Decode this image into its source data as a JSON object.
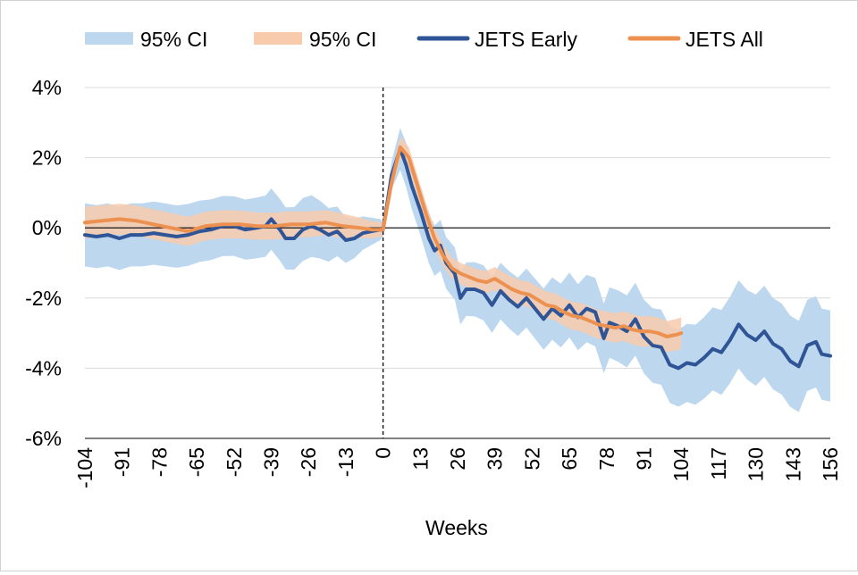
{
  "chart_data": {
    "type": "line",
    "title": "",
    "xlabel": "Weeks",
    "ylabel": "",
    "xlim": [
      -104,
      156
    ],
    "ylim": [
      -6,
      4
    ],
    "x_ticks": [
      -104,
      -91,
      -78,
      -65,
      -52,
      -39,
      -26,
      -13,
      0,
      13,
      26,
      39,
      52,
      65,
      78,
      91,
      104,
      117,
      130,
      143,
      156
    ],
    "y_ticks": [
      4,
      2,
      0,
      -2,
      -4,
      -6
    ],
    "y_tick_suffix": "%",
    "grid": "horizontal",
    "zero_line": true,
    "event_line_x": 0,
    "legend_position": "top",
    "legend": [
      {
        "label": "95% CI",
        "kind": "band",
        "color": "#bdd7ee"
      },
      {
        "label": "95% CI",
        "kind": "band",
        "color": "#f8cbad"
      },
      {
        "label": "JETS Early",
        "kind": "line",
        "color": "#2f5597"
      },
      {
        "label": "JETS All",
        "kind": "line",
        "color": "#ed9150"
      }
    ],
    "series": [
      {
        "name": "JETS Early",
        "color": "#2f5597",
        "ci_color": "#bdd7ee",
        "points": [
          [
            -104,
            -0.2
          ],
          [
            -100,
            -0.25
          ],
          [
            -96,
            -0.2
          ],
          [
            -92,
            -0.3
          ],
          [
            -88,
            -0.2
          ],
          [
            -84,
            -0.2
          ],
          [
            -80,
            -0.15
          ],
          [
            -76,
            -0.2
          ],
          [
            -72,
            -0.25
          ],
          [
            -68,
            -0.2
          ],
          [
            -64,
            -0.1
          ],
          [
            -60,
            -0.05
          ],
          [
            -56,
            0.05
          ],
          [
            -52,
            0.05
          ],
          [
            -48,
            -0.05
          ],
          [
            -44,
            0.0
          ],
          [
            -41,
            0.05
          ],
          [
            -39,
            0.25
          ],
          [
            -36,
            -0.05
          ],
          [
            -34,
            -0.3
          ],
          [
            -31,
            -0.3
          ],
          [
            -28,
            -0.05
          ],
          [
            -25,
            0.05
          ],
          [
            -22,
            -0.05
          ],
          [
            -19,
            -0.2
          ],
          [
            -16,
            -0.1
          ],
          [
            -13,
            -0.35
          ],
          [
            -10,
            -0.3
          ],
          [
            -7,
            -0.15
          ],
          [
            -4,
            -0.1
          ],
          [
            -1,
            -0.05
          ],
          [
            0,
            -0.05
          ],
          [
            3,
            1.5
          ],
          [
            6,
            2.25
          ],
          [
            8,
            1.8
          ],
          [
            10,
            1.2
          ],
          [
            13,
            0.5
          ],
          [
            16,
            -0.3
          ],
          [
            18,
            -0.65
          ],
          [
            20,
            -0.5
          ],
          [
            22,
            -1.0
          ],
          [
            25,
            -1.3
          ],
          [
            27,
            -2.0
          ],
          [
            29,
            -1.75
          ],
          [
            32,
            -1.75
          ],
          [
            35,
            -1.85
          ],
          [
            38,
            -2.2
          ],
          [
            41,
            -1.8
          ],
          [
            44,
            -2.05
          ],
          [
            47,
            -2.25
          ],
          [
            50,
            -2.0
          ],
          [
            53,
            -2.3
          ],
          [
            56,
            -2.6
          ],
          [
            59,
            -2.3
          ],
          [
            62,
            -2.5
          ],
          [
            65,
            -2.2
          ],
          [
            68,
            -2.55
          ],
          [
            71,
            -2.3
          ],
          [
            74,
            -2.4
          ],
          [
            77,
            -3.15
          ],
          [
            79,
            -2.7
          ],
          [
            82,
            -2.8
          ],
          [
            85,
            -2.95
          ],
          [
            88,
            -2.6
          ],
          [
            91,
            -3.1
          ],
          [
            94,
            -3.35
          ],
          [
            97,
            -3.4
          ],
          [
            100,
            -3.9
          ],
          [
            103,
            -4.0
          ],
          [
            106,
            -3.85
          ],
          [
            109,
            -3.9
          ],
          [
            112,
            -3.7
          ],
          [
            115,
            -3.45
          ],
          [
            118,
            -3.55
          ],
          [
            121,
            -3.2
          ],
          [
            124,
            -2.75
          ],
          [
            127,
            -3.05
          ],
          [
            130,
            -3.2
          ],
          [
            133,
            -2.95
          ],
          [
            136,
            -3.3
          ],
          [
            139,
            -3.45
          ],
          [
            142,
            -3.8
          ],
          [
            145,
            -3.95
          ],
          [
            148,
            -3.35
          ],
          [
            151,
            -3.25
          ],
          [
            153,
            -3.6
          ],
          [
            156,
            -3.65
          ]
        ],
        "ci_halfwidth": [
          [
            -104,
            0.9
          ],
          [
            -78,
            0.9
          ],
          [
            -52,
            0.85
          ],
          [
            -26,
            0.9
          ],
          [
            -13,
            0.65
          ],
          [
            -1,
            0.3
          ],
          [
            0,
            0.2
          ],
          [
            6,
            0.6
          ],
          [
            13,
            0.7
          ],
          [
            26,
            0.75
          ],
          [
            52,
            0.85
          ],
          [
            78,
            1.0
          ],
          [
            104,
            1.1
          ],
          [
            130,
            1.3
          ],
          [
            156,
            1.3
          ]
        ]
      },
      {
        "name": "JETS All",
        "color": "#ed9150",
        "ci_color": "#f8cbad",
        "points": [
          [
            -104,
            0.15
          ],
          [
            -98,
            0.2
          ],
          [
            -92,
            0.25
          ],
          [
            -86,
            0.2
          ],
          [
            -80,
            0.1
          ],
          [
            -74,
            0.0
          ],
          [
            -68,
            -0.1
          ],
          [
            -62,
            0.05
          ],
          [
            -56,
            0.1
          ],
          [
            -50,
            0.1
          ],
          [
            -44,
            0.05
          ],
          [
            -38,
            0.05
          ],
          [
            -32,
            0.1
          ],
          [
            -26,
            0.1
          ],
          [
            -20,
            0.15
          ],
          [
            -14,
            0.05
          ],
          [
            -8,
            0.0
          ],
          [
            -4,
            -0.05
          ],
          [
            0,
            -0.05
          ],
          [
            3,
            1.3
          ],
          [
            6,
            2.3
          ],
          [
            9,
            2.0
          ],
          [
            12,
            1.2
          ],
          [
            15,
            0.4
          ],
          [
            18,
            -0.3
          ],
          [
            21,
            -0.8
          ],
          [
            24,
            -1.15
          ],
          [
            27,
            -1.3
          ],
          [
            30,
            -1.4
          ],
          [
            33,
            -1.5
          ],
          [
            36,
            -1.55
          ],
          [
            39,
            -1.45
          ],
          [
            42,
            -1.6
          ],
          [
            45,
            -1.75
          ],
          [
            48,
            -1.85
          ],
          [
            51,
            -1.9
          ],
          [
            54,
            -2.05
          ],
          [
            57,
            -2.2
          ],
          [
            60,
            -2.25
          ],
          [
            63,
            -2.4
          ],
          [
            66,
            -2.5
          ],
          [
            69,
            -2.55
          ],
          [
            72,
            -2.65
          ],
          [
            75,
            -2.75
          ],
          [
            78,
            -2.8
          ],
          [
            81,
            -2.85
          ],
          [
            84,
            -2.8
          ],
          [
            87,
            -2.9
          ],
          [
            90,
            -2.95
          ],
          [
            93,
            -2.95
          ],
          [
            96,
            -3.0
          ],
          [
            99,
            -3.1
          ],
          [
            102,
            -3.05
          ],
          [
            104,
            -3.0
          ]
        ],
        "ci_halfwidth": [
          [
            -104,
            0.45
          ],
          [
            -52,
            0.4
          ],
          [
            -13,
            0.35
          ],
          [
            0,
            0.2
          ],
          [
            6,
            0.3
          ],
          [
            26,
            0.3
          ],
          [
            65,
            0.4
          ],
          [
            104,
            0.45
          ]
        ]
      }
    ]
  }
}
